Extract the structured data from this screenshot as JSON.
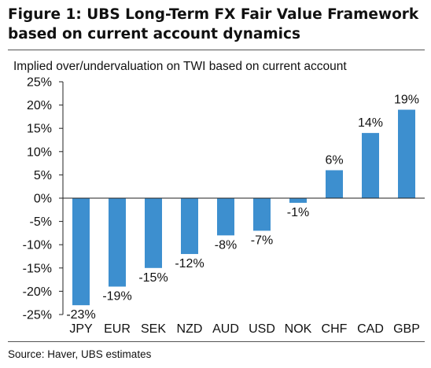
{
  "header": {
    "title": "Figure 1: UBS Long-Term FX Fair Value Framework based on current account dynamics"
  },
  "chart_data": {
    "type": "bar",
    "title": "Figure 1: UBS Long-Term FX Fair Value Framework based on current account dynamics",
    "subtitle": "Implied over/undervaluation on TWI based on current account",
    "xlabel": "",
    "ylabel": "",
    "categories": [
      "JPY",
      "EUR",
      "SEK",
      "NZD",
      "AUD",
      "USD",
      "NOK",
      "CHF",
      "CAD",
      "GBP"
    ],
    "values": [
      -23,
      -19,
      -15,
      -12,
      -8,
      -7,
      -1,
      6,
      14,
      19
    ],
    "data_labels": [
      "-23%",
      "-19%",
      "-15%",
      "-12%",
      "-8%",
      "-7%",
      "-1%",
      "6%",
      "14%",
      "19%"
    ],
    "ylim": [
      -25,
      25
    ],
    "yticks": [
      25,
      20,
      15,
      10,
      5,
      0,
      -5,
      -10,
      -15,
      -20,
      -25
    ],
    "ytick_labels": [
      "25%",
      "20%",
      "15%",
      "10%",
      "5%",
      "0%",
      "-5%",
      "-10%",
      "-15%",
      "-20%",
      "-25%"
    ],
    "grid": false,
    "legend": "none",
    "bar_color": "#3d8fcf",
    "source": "Source: Haver, UBS estimates"
  }
}
